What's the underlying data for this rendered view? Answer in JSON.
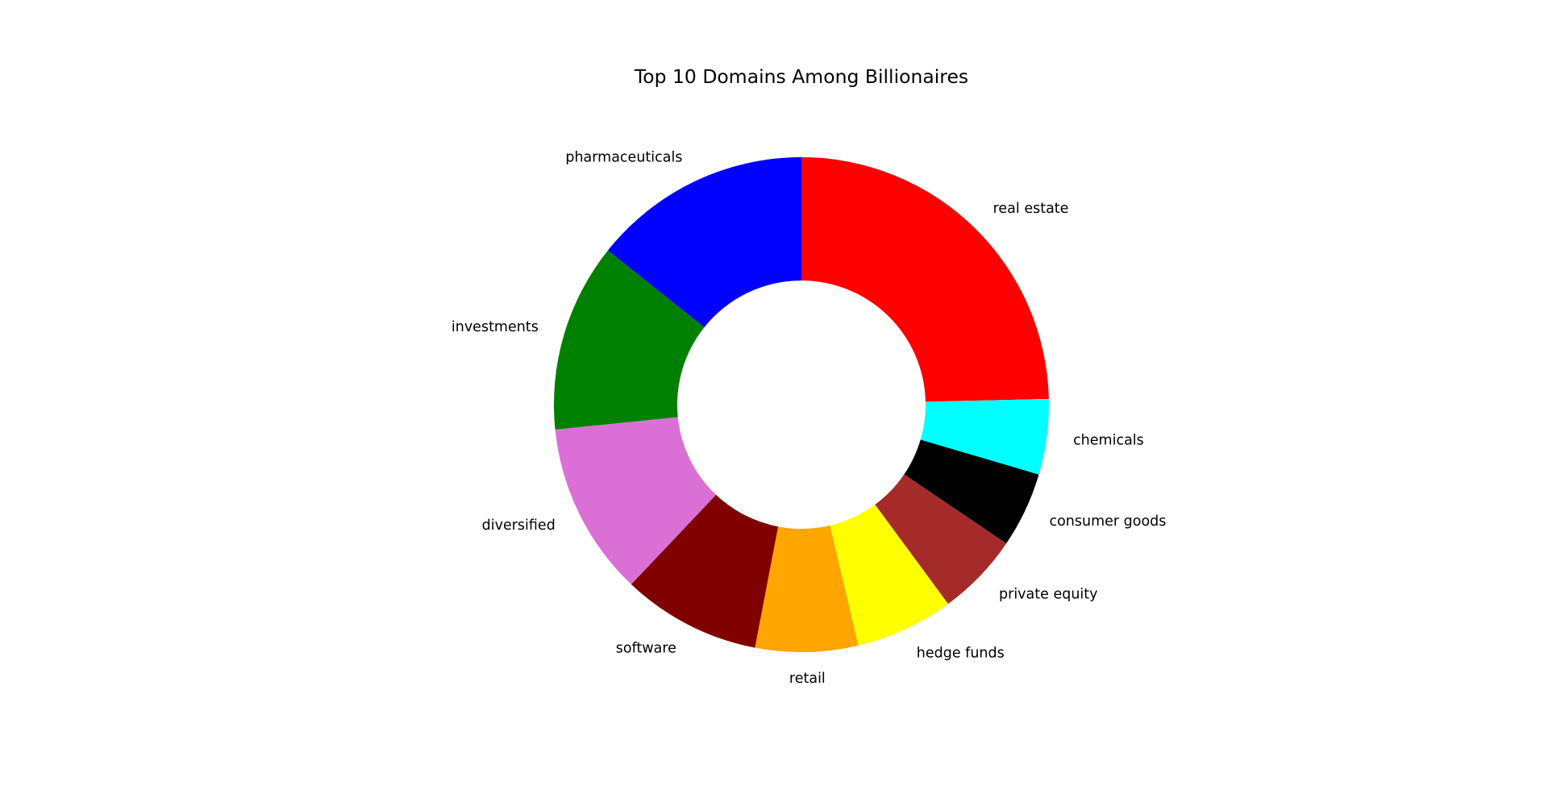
{
  "chart_data": {
    "type": "pie",
    "style": "donut",
    "title": "Top 10 Domains Among Billionaires",
    "start_angle_deg": 90,
    "direction": "clockwise",
    "slices": [
      {
        "label": "real estate",
        "value": 25.0,
        "color": "#ff0000"
      },
      {
        "label": "chemicals",
        "value": 5.0,
        "color": "#00ffff"
      },
      {
        "label": "consumer goods",
        "value": 5.0,
        "color": "#000000"
      },
      {
        "label": "private equity",
        "value": 5.5,
        "color": "#a52a2a"
      },
      {
        "label": "hedge funds",
        "value": 6.5,
        "color": "#ffff00"
      },
      {
        "label": "retail",
        "value": 6.8,
        "color": "#ffa500"
      },
      {
        "label": "software",
        "value": 9.2,
        "color": "#800000"
      },
      {
        "label": "diversified",
        "value": 11.5,
        "color": "#da70d6"
      },
      {
        "label": "investments",
        "value": 12.5,
        "color": "#008000"
      },
      {
        "label": "pharmaceuticals",
        "value": 14.5,
        "color": "#0000ff"
      }
    ]
  }
}
